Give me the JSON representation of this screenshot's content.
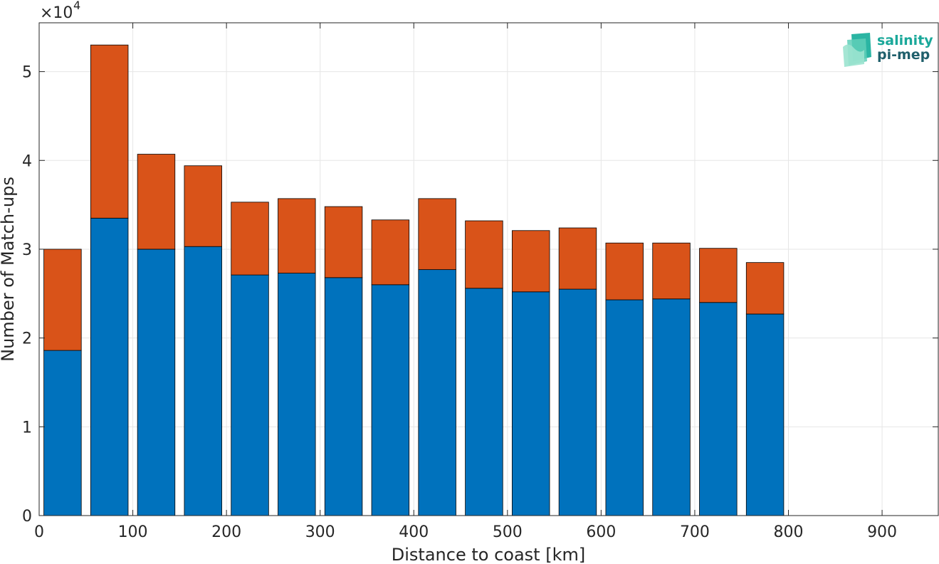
{
  "chart_data": {
    "type": "bar",
    "stacked": true,
    "x": [
      25,
      75,
      125,
      175,
      225,
      275,
      325,
      375,
      425,
      475,
      525,
      575,
      625,
      675,
      725,
      775
    ],
    "series": [
      {
        "color": "#0072BD",
        "values": [
          18600,
          33500,
          30000,
          30300,
          27100,
          27300,
          26800,
          26000,
          27700,
          25600,
          25200,
          25500,
          24300,
          24400,
          24000,
          22700
        ]
      },
      {
        "color": "#D95319",
        "values": [
          11400,
          19500,
          10700,
          9100,
          8200,
          8400,
          8000,
          7300,
          8000,
          7600,
          6900,
          6900,
          6400,
          6300,
          6100,
          5800
        ]
      }
    ],
    "xlabel": "Distance to coast [km]",
    "ylabel": "Number of Match-ups",
    "xlim": [
      0,
      960
    ],
    "ylim": [
      0,
      55500
    ],
    "xticks": [
      "0",
      "100",
      "200",
      "300",
      "400",
      "500",
      "600",
      "700",
      "800",
      "900"
    ],
    "yticks": [
      "0",
      "1",
      "2",
      "3",
      "4",
      "5"
    ],
    "y_multiplier": {
      "base": "×10",
      "exponent": "4"
    },
    "grid": true
  },
  "logo": {
    "line1": "salinity",
    "line2": "pi-mep",
    "color1": "#1aa89a",
    "color2": "#1f5f6b"
  }
}
